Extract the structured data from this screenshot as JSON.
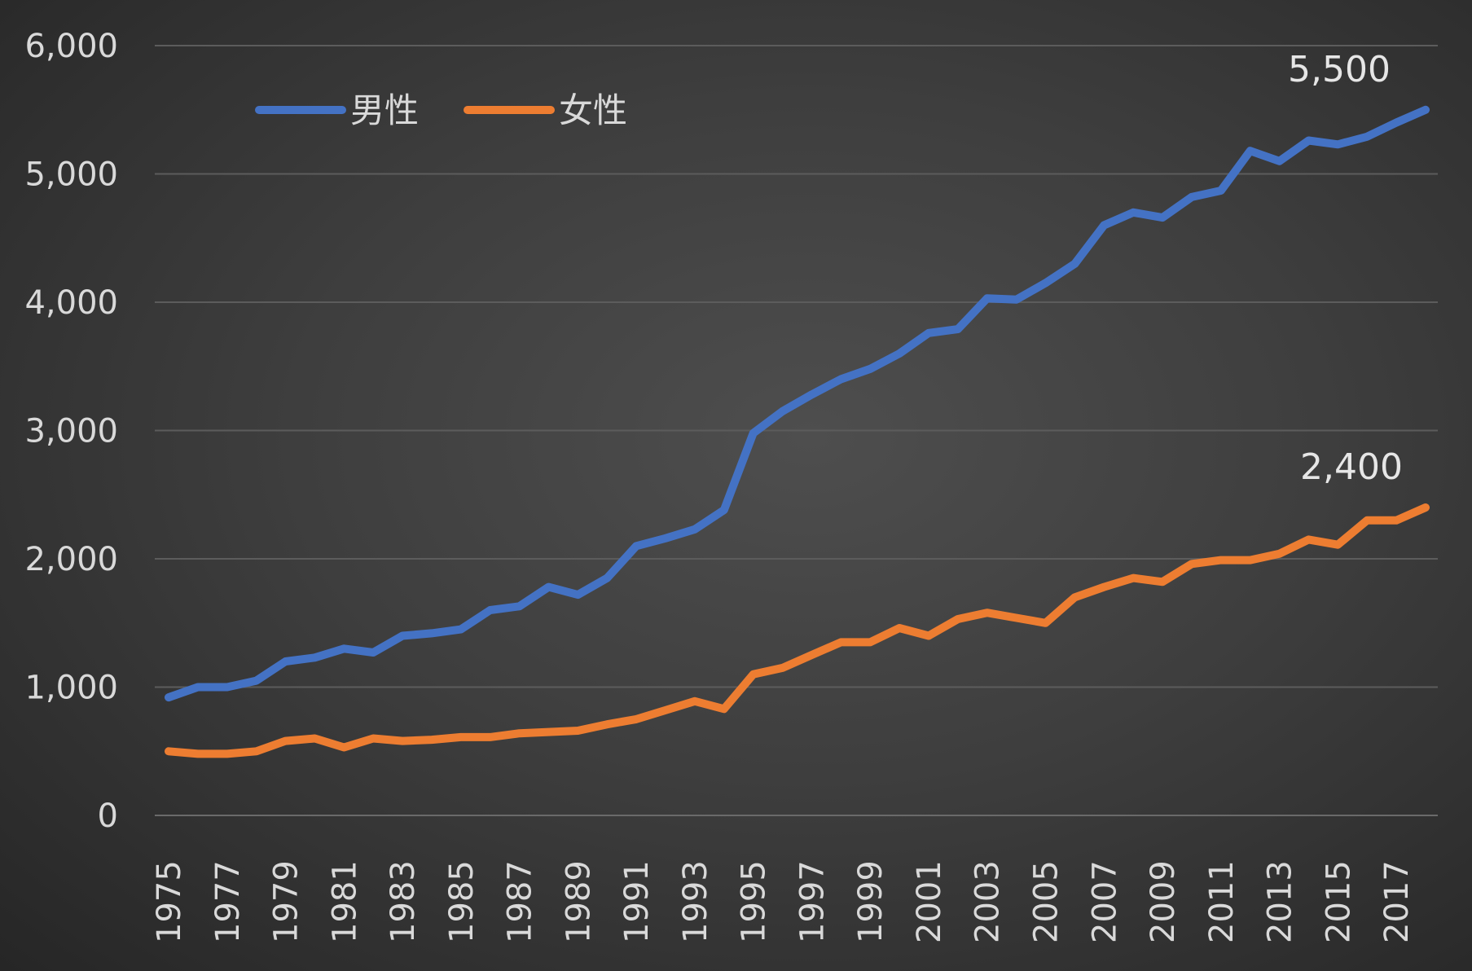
{
  "chart_data": {
    "type": "line",
    "title": "",
    "xlabel": "",
    "ylabel": "",
    "ylim": [
      0,
      6000
    ],
    "yticks": [
      "0",
      "1,000",
      "2,000",
      "3,000",
      "4,000",
      "5,000",
      "6,000"
    ],
    "ytick_values": [
      0,
      1000,
      2000,
      3000,
      4000,
      5000,
      6000
    ],
    "x": [
      1975,
      1976,
      1977,
      1978,
      1979,
      1980,
      1981,
      1982,
      1983,
      1984,
      1985,
      1986,
      1987,
      1988,
      1989,
      1990,
      1991,
      1992,
      1993,
      1994,
      1995,
      1996,
      1997,
      1998,
      1999,
      2000,
      2001,
      2002,
      2003,
      2004,
      2005,
      2006,
      2007,
      2008,
      2009,
      2010,
      2011,
      2012,
      2013,
      2014,
      2015,
      2016,
      2017,
      2018
    ],
    "xticks": [
      "1975",
      "1977",
      "1979",
      "1981",
      "1983",
      "1985",
      "1987",
      "1989",
      "1991",
      "1993",
      "1995",
      "1997",
      "1999",
      "2001",
      "2003",
      "2005",
      "2007",
      "2009",
      "2011",
      "2013",
      "2015",
      "2017"
    ],
    "grid": true,
    "legend_position": "top-left",
    "series": [
      {
        "name": "男性",
        "color": "#4472c4",
        "values": [
          920,
          1000,
          1000,
          1050,
          1200,
          1230,
          1300,
          1270,
          1400,
          1420,
          1450,
          1600,
          1630,
          1780,
          1720,
          1850,
          2100,
          2160,
          2230,
          2380,
          2980,
          3150,
          3280,
          3400,
          3480,
          3600,
          3760,
          3790,
          4030,
          4020,
          4150,
          4300,
          4600,
          4700,
          4660,
          4820,
          4870,
          5180,
          5100,
          5260,
          5230,
          5290,
          5400,
          5500
        ]
      },
      {
        "name": "女性",
        "color": "#ed7d31",
        "values": [
          500,
          480,
          480,
          500,
          580,
          600,
          530,
          600,
          580,
          590,
          610,
          610,
          640,
          650,
          660,
          710,
          750,
          820,
          890,
          830,
          1100,
          1150,
          1250,
          1350,
          1350,
          1460,
          1400,
          1530,
          1580,
          1540,
          1500,
          1700,
          1780,
          1850,
          1820,
          1960,
          1990,
          1990,
          2040,
          2150,
          2110,
          2300,
          2300,
          2400
        ]
      }
    ],
    "annotations": [
      {
        "text": "5,500",
        "series": 0,
        "x": 2018
      },
      {
        "text": "2,400",
        "series": 1,
        "x": 2018
      }
    ]
  }
}
